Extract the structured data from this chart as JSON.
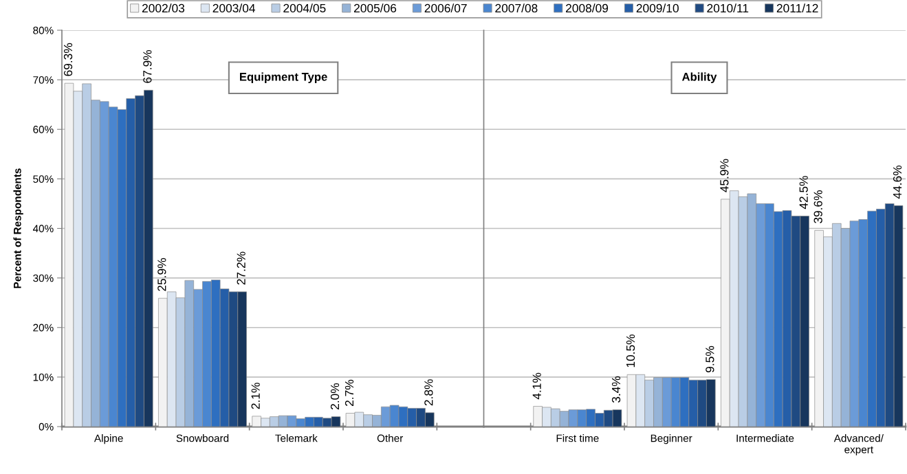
{
  "chart_data": [
    {
      "type": "bar",
      "categories": [
        "Alpine",
        "Snowboard",
        "Telemark",
        "Other"
      ],
      "series": [
        {
          "name": "2002/03",
          "color": "#f2f2f2",
          "values": [
            69.3,
            25.9,
            2.1,
            2.7
          ],
          "value_labels": [
            "69.3%",
            "25.9%",
            "2.1%",
            "2.7%"
          ]
        },
        {
          "name": "2003/04",
          "color": "#dce6f2",
          "values": [
            67.7,
            27.2,
            1.7,
            2.9
          ]
        },
        {
          "name": "2004/05",
          "color": "#b9cde5",
          "values": [
            69.2,
            26.0,
            2.0,
            2.4
          ]
        },
        {
          "name": "2005/06",
          "color": "#95b3d7",
          "values": [
            65.9,
            29.5,
            2.2,
            2.3
          ]
        },
        {
          "name": "2006/07",
          "color": "#6b9bd8",
          "values": [
            65.6,
            27.7,
            2.2,
            4.0
          ]
        },
        {
          "name": "2007/08",
          "color": "#4a86d0",
          "values": [
            64.5,
            29.3,
            1.6,
            4.3
          ]
        },
        {
          "name": "2008/09",
          "color": "#2e6fc0",
          "values": [
            64.0,
            29.6,
            1.9,
            4.0
          ]
        },
        {
          "name": "2009/10",
          "color": "#255ea8",
          "values": [
            66.2,
            27.8,
            1.9,
            3.7
          ]
        },
        {
          "name": "2010/11",
          "color": "#1f4a82",
          "values": [
            66.8,
            27.2,
            1.7,
            3.7
          ]
        },
        {
          "name": "2011/12",
          "color": "#17365d",
          "values": [
            67.9,
            27.2,
            2.0,
            2.8
          ],
          "value_labels": [
            "67.9%",
            "27.2%",
            "2.0%",
            "2.8%"
          ]
        }
      ],
      "ylabel": "Percent of Respondents",
      "ylim": [
        0,
        80
      ],
      "yticks": [
        {
          "value": 0,
          "label": "0%"
        },
        {
          "value": 10,
          "label": "10%"
        },
        {
          "value": 20,
          "label": "20%"
        },
        {
          "value": 30,
          "label": "30%"
        },
        {
          "value": 40,
          "label": "40%"
        },
        {
          "value": 50,
          "label": "50%"
        },
        {
          "value": 60,
          "label": "60%"
        },
        {
          "value": 70,
          "label": "70%"
        },
        {
          "value": 80,
          "label": "80%"
        }
      ],
      "grid": "y",
      "legend": "top",
      "annotations": [
        "Equipment Type"
      ]
    },
    {
      "type": "bar",
      "categories": [
        "First time",
        "Beginner",
        "Intermediate",
        "Advanced/\nexpert"
      ],
      "series": [
        {
          "name": "2002/03",
          "color": "#f2f2f2",
          "values": [
            4.1,
            10.5,
            45.9,
            39.6
          ],
          "value_labels": [
            "4.1%",
            "10.5%",
            "45.9%",
            "39.6%"
          ]
        },
        {
          "name": "2003/04",
          "color": "#dce6f2",
          "values": [
            3.9,
            10.5,
            47.6,
            38.3
          ]
        },
        {
          "name": "2004/05",
          "color": "#b9cde5",
          "values": [
            3.6,
            9.4,
            46.4,
            41.0
          ]
        },
        {
          "name": "2005/06",
          "color": "#95b3d7",
          "values": [
            3.1,
            9.9,
            47.0,
            40.0
          ]
        },
        {
          "name": "2006/07",
          "color": "#6b9bd8",
          "values": [
            3.4,
            9.9,
            45.0,
            41.5
          ]
        },
        {
          "name": "2007/08",
          "color": "#4a86d0",
          "values": [
            3.4,
            9.9,
            45.0,
            41.8
          ]
        },
        {
          "name": "2008/09",
          "color": "#2e6fc0",
          "values": [
            3.5,
            9.9,
            43.4,
            43.5
          ]
        },
        {
          "name": "2009/10",
          "color": "#255ea8",
          "values": [
            2.7,
            9.4,
            43.6,
            43.9
          ]
        },
        {
          "name": "2010/11",
          "color": "#1f4a82",
          "values": [
            3.3,
            9.4,
            42.5,
            45.0
          ]
        },
        {
          "name": "2011/12",
          "color": "#17365d",
          "values": [
            3.4,
            9.5,
            42.5,
            44.6
          ],
          "value_labels": [
            "3.4%",
            "9.5%",
            "42.5%",
            "44.6%"
          ]
        }
      ],
      "ylim": [
        0,
        80
      ],
      "yticks": [
        0,
        10,
        20,
        30,
        40,
        50,
        60,
        70,
        80
      ],
      "grid": "y",
      "tick_labels": "x",
      "annotations": [
        "Ability"
      ]
    }
  ]
}
